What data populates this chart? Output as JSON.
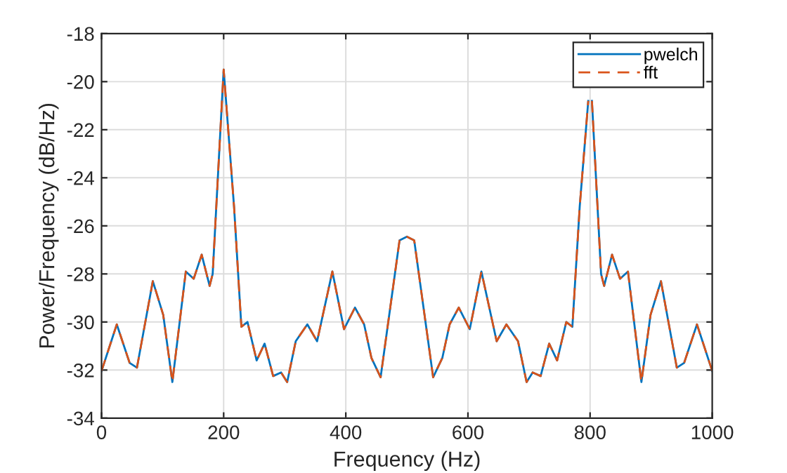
{
  "chart_data": {
    "type": "line",
    "xlabel": "Frequency (Hz)",
    "ylabel": "Power/Frequency (dB/Hz)",
    "x": [
      0,
      25,
      46,
      58,
      84,
      101,
      116,
      138,
      151,
      164,
      177,
      182,
      200,
      217,
      229,
      239,
      254,
      267,
      281,
      294,
      304,
      318,
      337,
      353,
      378,
      397,
      415,
      430,
      442,
      457,
      488,
      500,
      512,
      543,
      558,
      570,
      585,
      603,
      622,
      647,
      663,
      682,
      696,
      706,
      719,
      733,
      746,
      761,
      771,
      783,
      797,
      800,
      803,
      818,
      823,
      836,
      849,
      862,
      884,
      899,
      916,
      942,
      954,
      975,
      1000
    ],
    "series": [
      {
        "name": "pwelch",
        "color": "#0072bd",
        "line_style": "solid",
        "values": [
          -32.04,
          -30.1,
          -31.7,
          -31.9,
          -28.3,
          -29.7,
          -32.5,
          -27.9,
          -28.2,
          -27.2,
          -28.5,
          -28.0,
          -19.5,
          -25.2,
          -30.2,
          -30.0,
          -31.6,
          -30.9,
          -32.25,
          -32.1,
          -32.5,
          -30.8,
          -30.1,
          -30.8,
          -27.9,
          -30.3,
          -29.4,
          -30.1,
          -31.5,
          -32.3,
          -26.6,
          -26.45,
          -26.6,
          -32.3,
          -31.5,
          -30.1,
          -29.4,
          -30.3,
          -27.9,
          -30.8,
          -30.1,
          -30.8,
          -32.5,
          -32.1,
          -32.25,
          -30.9,
          -31.6,
          -30.0,
          -30.2,
          -25.2,
          -20.8,
          null,
          -20.8,
          -28.0,
          -28.5,
          -27.2,
          -28.2,
          -27.9,
          -32.5,
          -29.7,
          -28.3,
          -31.9,
          -31.7,
          -30.1,
          -32.04
        ]
      },
      {
        "name": "fft",
        "color": "#d95319",
        "line_style": "dashed",
        "values": [
          -32.04,
          -30.1,
          -31.7,
          -31.9,
          -28.3,
          -29.7,
          -32.5,
          -27.9,
          -28.2,
          -27.2,
          -28.5,
          -28.0,
          -19.5,
          -25.2,
          -30.2,
          -30.0,
          -31.6,
          -30.9,
          -32.25,
          -32.1,
          -32.5,
          -30.8,
          -30.1,
          -30.8,
          -27.9,
          -30.3,
          -29.4,
          -30.1,
          -31.5,
          -32.3,
          -26.6,
          -26.45,
          -26.6,
          -32.3,
          -31.5,
          -30.1,
          -29.4,
          -30.3,
          -27.9,
          -30.8,
          -30.1,
          -30.8,
          -32.5,
          -32.1,
          -32.25,
          -30.9,
          -31.6,
          -30.0,
          -30.2,
          -25.2,
          -20.8,
          null,
          -20.8,
          -28.0,
          -28.5,
          -27.2,
          -28.2,
          -27.9,
          -32.5,
          -29.7,
          -28.3,
          -31.9,
          -31.7,
          -30.1,
          -32.04
        ]
      }
    ],
    "xlim": [
      0,
      1000
    ],
    "xticks": [
      0,
      200,
      400,
      600,
      800,
      1000
    ],
    "ylim": [
      -34,
      -18
    ],
    "yticks": [
      -34,
      -32,
      -30,
      -28,
      -26,
      -24,
      -22,
      -20,
      -18
    ],
    "grid": true,
    "legend": "top right"
  }
}
